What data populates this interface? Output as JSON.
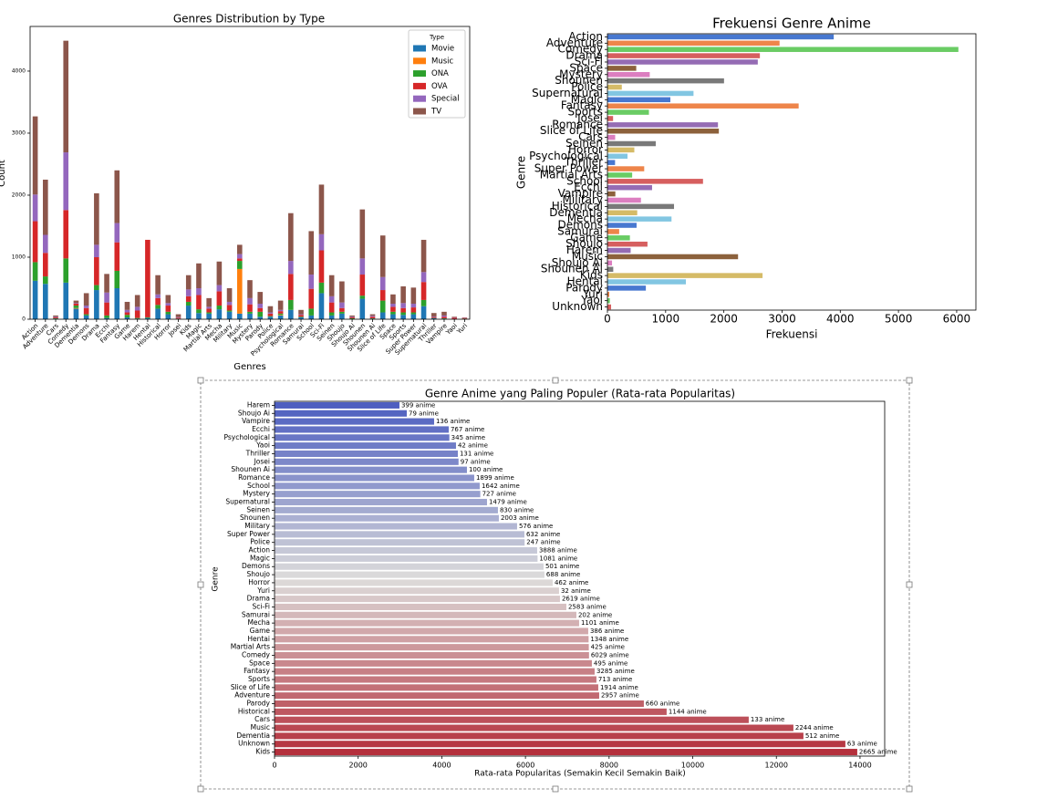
{
  "chart_data": [
    {
      "type": "bar",
      "stacked": true,
      "title": "Genres Distribution by Type",
      "xlabel": "Genres",
      "ylabel": "Count",
      "categories": [
        "Action",
        "Adventure",
        "Cars",
        "Comedy",
        "Dementia",
        "Demons",
        "Drama",
        "Ecchi",
        "Fantasy",
        "Game",
        "Harem",
        "Hentai",
        "Historical",
        "Horror",
        "Josei",
        "Kids",
        "Magic",
        "Martial Arts",
        "Mecha",
        "Military",
        "Music",
        "Mystery",
        "Parody",
        "Police",
        "Psychological",
        "Romance",
        "Samurai",
        "School",
        "Sci-Fi",
        "Seinen",
        "Shoujo",
        "Shoujo Ai",
        "Shounen",
        "Shounen Ai",
        "Slice of Life",
        "Space",
        "Sports",
        "Super Power",
        "Supernatural",
        "Thriller",
        "Vampire",
        "Yaoi",
        "Yuri"
      ],
      "series": [
        {
          "name": "Movie",
          "color": "#1f77b4",
          "values": [
            620,
            570,
            10,
            590,
            170,
            60,
            470,
            20,
            500,
            30,
            10,
            20,
            170,
            80,
            5,
            220,
            100,
            90,
            160,
            120,
            90,
            90,
            40,
            40,
            60,
            150,
            30,
            60,
            420,
            60,
            90,
            5,
            330,
            10,
            110,
            80,
            70,
            80,
            210,
            15,
            10,
            5,
            5
          ]
        },
        {
          "name": "Music",
          "color": "#ff7f0e",
          "values": [
            0,
            0,
            0,
            0,
            10,
            0,
            0,
            0,
            0,
            0,
            0,
            0,
            0,
            0,
            0,
            0,
            0,
            0,
            0,
            0,
            720,
            0,
            0,
            0,
            10,
            0,
            0,
            0,
            0,
            0,
            0,
            0,
            0,
            0,
            0,
            0,
            0,
            0,
            0,
            0,
            0,
            0,
            0
          ]
        },
        {
          "name": "ONA",
          "color": "#2ca02c",
          "values": [
            300,
            120,
            5,
            390,
            40,
            20,
            80,
            40,
            280,
            40,
            10,
            10,
            60,
            40,
            5,
            60,
            60,
            20,
            60,
            20,
            130,
            30,
            80,
            10,
            20,
            160,
            10,
            110,
            170,
            50,
            30,
            10,
            50,
            5,
            190,
            40,
            40,
            30,
            100,
            5,
            5,
            0,
            5
          ]
        },
        {
          "name": "OVA",
          "color": "#d62728",
          "values": [
            660,
            380,
            15,
            780,
            30,
            100,
            450,
            210,
            460,
            40,
            120,
            1250,
            110,
            100,
            15,
            90,
            230,
            60,
            230,
            90,
            40,
            120,
            60,
            40,
            40,
            420,
            30,
            320,
            520,
            160,
            60,
            15,
            340,
            25,
            170,
            80,
            70,
            80,
            290,
            15,
            25,
            20,
            10
          ]
        },
        {
          "name": "Special",
          "color": "#9467bd",
          "values": [
            430,
            290,
            10,
            930,
            10,
            40,
            200,
            160,
            310,
            40,
            60,
            0,
            60,
            40,
            10,
            110,
            110,
            30,
            100,
            50,
            70,
            100,
            70,
            20,
            20,
            210,
            10,
            230,
            260,
            100,
            90,
            10,
            260,
            15,
            210,
            50,
            80,
            60,
            160,
            10,
            20,
            5,
            5
          ]
        },
        {
          "name": "TV",
          "color": "#8c564b",
          "values": [
            1260,
            890,
            20,
            1800,
            40,
            200,
            830,
            300,
            850,
            130,
            190,
            0,
            310,
            130,
            45,
            230,
            400,
            140,
            380,
            220,
            150,
            290,
            190,
            100,
            150,
            770,
            70,
            700,
            800,
            340,
            340,
            20,
            790,
            25,
            670,
            150,
            270,
            260,
            520,
            55,
            60,
            10,
            5
          ]
        }
      ],
      "ylim": [
        0,
        4720
      ],
      "yticks": [
        0,
        1000,
        2000,
        3000,
        4000
      ],
      "legend_title": "Type",
      "legend": "upper right"
    },
    {
      "type": "barh",
      "title": "Frekuensi Genre Anime",
      "xlabel": "Frekuensi",
      "ylabel": "Genre",
      "categories": [
        "Action",
        "Adventure",
        "Comedy",
        "Drama",
        "Sci-Fi",
        "Space",
        "Mystery",
        "Shounen",
        "Police",
        "Supernatural",
        "Magic",
        "Fantasy",
        "Sports",
        "Josei",
        "Romance",
        "Slice of Life",
        "Cars",
        "Seinen",
        "Horror",
        "Psychological",
        "Thriller",
        "Super Power",
        "Martial Arts",
        "School",
        "Ecchi",
        "Vampire",
        "Military",
        "Historical",
        "Dementia",
        "Mecha",
        "Demons",
        "Samurai",
        "Game",
        "Shoujo",
        "Harem",
        "Music",
        "Shoujo Ai",
        "Shounen Ai",
        "Kids",
        "Hentai",
        "Parody",
        "Yuri",
        "Yaoi",
        "Unknown"
      ],
      "values": [
        3888,
        2957,
        6029,
        2619,
        2583,
        495,
        727,
        2003,
        247,
        1479,
        1081,
        3285,
        713,
        97,
        1899,
        1914,
        133,
        830,
        462,
        345,
        131,
        632,
        425,
        1642,
        767,
        136,
        576,
        1144,
        512,
        1101,
        501,
        202,
        386,
        688,
        399,
        2244,
        79,
        100,
        2665,
        1348,
        660,
        32,
        42,
        63
      ],
      "colors": [
        "#4878d0",
        "#ee854a",
        "#6acc64",
        "#d65f5f",
        "#956cb4",
        "#8c613c",
        "#dc7ec0",
        "#797979",
        "#d5bb67",
        "#82c6e2"
      ],
      "xlim": [
        0,
        6330
      ],
      "xticks": [
        0,
        1000,
        2000,
        3000,
        4000,
        5000,
        6000
      ]
    },
    {
      "type": "barh",
      "title": "Genre Anime yang Paling Populer (Rata-rata Popularitas)",
      "xlabel": "Rata-rata Popularitas (Semakin Kecil Semakin Baik)",
      "ylabel": "Genre",
      "categories": [
        "Harem",
        "Shoujo Ai",
        "Vampire",
        "Ecchi",
        "Psychological",
        "Yaoi",
        "Thriller",
        "Josei",
        "Shounen Ai",
        "Romance",
        "School",
        "Mystery",
        "Supernatural",
        "Seinen",
        "Shounen",
        "Military",
        "Super Power",
        "Police",
        "Action",
        "Magic",
        "Demons",
        "Shoujo",
        "Horror",
        "Yuri",
        "Drama",
        "Sci-Fi",
        "Samurai",
        "Mecha",
        "Game",
        "Hentai",
        "Martial Arts",
        "Comedy",
        "Space",
        "Fantasy",
        "Sports",
        "Slice of Life",
        "Adventure",
        "Parody",
        "Historical",
        "Cars",
        "Music",
        "Dementia",
        "Unknown",
        "Kids"
      ],
      "values": [
        2987,
        3162,
        3816,
        4165,
        4180,
        4339,
        4383,
        4400,
        4601,
        4775,
        4906,
        4920,
        5081,
        5342,
        5364,
        5800,
        5975,
        5980,
        6280,
        6290,
        6433,
        6454,
        6651,
        6803,
        6825,
        6978,
        7218,
        7283,
        7501,
        7510,
        7515,
        7520,
        7588,
        7654,
        7697,
        7741,
        7763,
        8831,
        9376,
        11339,
        12407,
        12647,
        13650,
        13934
      ],
      "bar_annotations": [
        "399 anime",
        "79 anime",
        "136 anime",
        "767 anime",
        "345 anime",
        "42 anime",
        "131 anime",
        "97 anime",
        "100 anime",
        "1899 anime",
        "1642 anime",
        "727 anime",
        "1479 anime",
        "830 anime",
        "2003 anime",
        "576 anime",
        "632 anime",
        "247 anime",
        "3888 anime",
        "1081 anime",
        "501 anime",
        "688 anime",
        "462 anime",
        "32 anime",
        "2619 anime",
        "2583 anime",
        "202 anime",
        "1101 anime",
        "386 anime",
        "1348 anime",
        "425 anime",
        "6029 anime",
        "495 anime",
        "3285 anime",
        "713 anime",
        "1914 anime",
        "2957 anime",
        "660 anime",
        "1144 anime",
        "133 anime",
        "2244 anime",
        "512 anime",
        "63 anime",
        "2665 anime"
      ],
      "colormap": [
        "#4e5fc0",
        "#dddcdb",
        "#b4303c"
      ],
      "xlim": [
        0,
        14590
      ],
      "xticks": [
        0,
        2000,
        4000,
        6000,
        8000,
        10000,
        12000,
        14000
      ]
    }
  ]
}
